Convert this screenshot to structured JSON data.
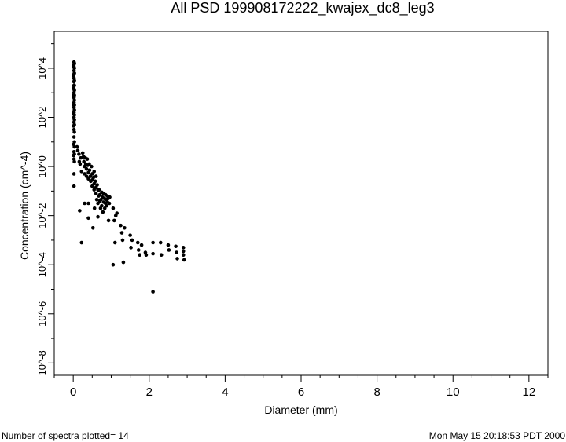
{
  "chart_data": {
    "type": "scatter",
    "title": "All PSD 199908172222_kwajex_dc8_leg3",
    "xlabel": "Diameter (mm)",
    "ylabel": "Concentration (cm^-4)",
    "xlim": [
      -0.5,
      12.5
    ],
    "ylim": [
      -8.5,
      5.5
    ],
    "yscale": "log",
    "x_ticks": [
      0,
      2,
      4,
      6,
      8,
      10,
      12
    ],
    "x_tick_labels": [
      "0",
      "2",
      "4",
      "6",
      "8",
      "10",
      "12"
    ],
    "y_ticks": [
      4,
      2,
      0,
      -2,
      -4,
      -6,
      -8
    ],
    "y_tick_labels": [
      "10^4",
      "10^2",
      "10^0",
      "10^-2",
      "10^-4",
      "10^-6",
      "10^-8"
    ],
    "grid": false,
    "legend": "none",
    "marker_color": "#000000",
    "points": [
      [
        0.02,
        4.25
      ],
      [
        0.02,
        4.15
      ],
      [
        0.02,
        4.05
      ],
      [
        0.02,
        3.9
      ],
      [
        0.02,
        3.75
      ],
      [
        0.02,
        3.6
      ],
      [
        0.02,
        3.45
      ],
      [
        0.02,
        3.3
      ],
      [
        0.02,
        3.15
      ],
      [
        0.02,
        3.0
      ],
      [
        0.02,
        2.8
      ],
      [
        0.02,
        2.6
      ],
      [
        0.02,
        2.4
      ],
      [
        0.02,
        2.2
      ],
      [
        0.02,
        2.0
      ],
      [
        0.02,
        1.8
      ],
      [
        0.02,
        1.5
      ],
      [
        0.02,
        1.2
      ],
      [
        0.02,
        0.6
      ],
      [
        0.02,
        0.3
      ],
      [
        0.02,
        -0.3
      ],
      [
        0.02,
        -0.8
      ],
      [
        0.03,
        4.2
      ],
      [
        0.03,
        4.0
      ],
      [
        0.03,
        3.8
      ],
      [
        0.03,
        3.5
      ],
      [
        0.03,
        3.3
      ],
      [
        0.03,
        3.1
      ],
      [
        0.03,
        2.9
      ],
      [
        0.03,
        2.7
      ],
      [
        0.03,
        2.5
      ],
      [
        0.03,
        2.3
      ],
      [
        0.03,
        2.1
      ],
      [
        0.03,
        1.9
      ],
      [
        0.03,
        1.7
      ],
      [
        0.03,
        1.4
      ],
      [
        0.03,
        1.0
      ],
      [
        0.03,
        0.8
      ],
      [
        0.03,
        0.5
      ],
      [
        0.03,
        0.2
      ],
      [
        0.01,
        4.1
      ],
      [
        0.01,
        3.7
      ],
      [
        0.01,
        3.2
      ],
      [
        0.01,
        2.9
      ],
      [
        0.01,
        2.5
      ],
      [
        0.01,
        2.15
      ],
      [
        0.01,
        1.65
      ],
      [
        0.01,
        0.9
      ],
      [
        0.01,
        0.45
      ],
      [
        0.1,
        0.8
      ],
      [
        0.12,
        0.65
      ],
      [
        0.15,
        0.5
      ],
      [
        0.16,
        0.2
      ],
      [
        0.18,
        0.1
      ],
      [
        0.2,
        0.35
      ],
      [
        0.22,
        -0.2
      ],
      [
        0.17,
        -1.8
      ],
      [
        0.22,
        -3.1
      ],
      [
        0.25,
        0.55
      ],
      [
        0.27,
        0.4
      ],
      [
        0.28,
        0.2
      ],
      [
        0.3,
        0.0
      ],
      [
        0.3,
        -0.3
      ],
      [
        0.3,
        -1.5
      ],
      [
        0.32,
        0.35
      ],
      [
        0.33,
        0.1
      ],
      [
        0.35,
        -0.1
      ],
      [
        0.35,
        -0.4
      ],
      [
        0.37,
        0.3
      ],
      [
        0.38,
        0.05
      ],
      [
        0.4,
        -0.25
      ],
      [
        0.4,
        -0.5
      ],
      [
        0.4,
        -1.5
      ],
      [
        0.4,
        -2.1
      ],
      [
        0.42,
        0.1
      ],
      [
        0.43,
        -0.15
      ],
      [
        0.45,
        -0.4
      ],
      [
        0.46,
        -0.6
      ],
      [
        0.48,
        0.0
      ],
      [
        0.5,
        -0.3
      ],
      [
        0.5,
        -0.55
      ],
      [
        0.5,
        -0.8
      ],
      [
        0.52,
        -2.5
      ],
      [
        0.53,
        -0.45
      ],
      [
        0.55,
        -0.2
      ],
      [
        0.55,
        -0.7
      ],
      [
        0.55,
        -0.95
      ],
      [
        0.56,
        -1.7
      ],
      [
        0.58,
        -0.6
      ],
      [
        0.6,
        -0.4
      ],
      [
        0.6,
        -0.85
      ],
      [
        0.6,
        -1.1
      ],
      [
        0.62,
        -1.35
      ],
      [
        0.63,
        -0.75
      ],
      [
        0.65,
        -0.95
      ],
      [
        0.65,
        -1.5
      ],
      [
        0.65,
        -2.05
      ],
      [
        0.67,
        -1.2
      ],
      [
        0.68,
        -0.95
      ],
      [
        0.7,
        -1.4
      ],
      [
        0.7,
        -1.15
      ],
      [
        0.72,
        -1.7
      ],
      [
        0.73,
        -1.35
      ],
      [
        0.75,
        -1.05
      ],
      [
        0.75,
        -1.6
      ],
      [
        0.77,
        -1.25
      ],
      [
        0.78,
        -1.85
      ],
      [
        0.8,
        -1.1
      ],
      [
        0.8,
        -1.45
      ],
      [
        0.82,
        -1.3
      ],
      [
        0.83,
        -1.7
      ],
      [
        0.85,
        -1.15
      ],
      [
        0.85,
        -1.5
      ],
      [
        0.87,
        -1.35
      ],
      [
        0.88,
        -1.6
      ],
      [
        0.9,
        -1.2
      ],
      [
        0.9,
        -1.45
      ],
      [
        0.92,
        -1.3
      ],
      [
        0.93,
        -2.2
      ],
      [
        0.95,
        -1.5
      ],
      [
        0.96,
        -1.25
      ],
      [
        1.05,
        -1.7
      ],
      [
        1.08,
        -2.2
      ],
      [
        1.1,
        -3.1
      ],
      [
        1.12,
        -2.0
      ],
      [
        1.15,
        -1.9
      ],
      [
        1.05,
        -4.0
      ],
      [
        1.25,
        -2.4
      ],
      [
        1.28,
        -2.7
      ],
      [
        1.3,
        -3.0
      ],
      [
        1.32,
        -3.9
      ],
      [
        1.35,
        -2.5
      ],
      [
        1.5,
        -2.8
      ],
      [
        1.52,
        -3.3
      ],
      [
        1.55,
        -3.0
      ],
      [
        1.7,
        -3.1
      ],
      [
        1.72,
        -3.4
      ],
      [
        1.75,
        -3.6
      ],
      [
        1.8,
        -3.2
      ],
      [
        1.9,
        -3.5
      ],
      [
        1.92,
        -3.6
      ],
      [
        2.1,
        -3.1
      ],
      [
        2.1,
        -3.55
      ],
      [
        2.1,
        -5.1
      ],
      [
        2.3,
        -3.1
      ],
      [
        2.32,
        -3.6
      ],
      [
        2.5,
        -3.2
      ],
      [
        2.52,
        -3.4
      ],
      [
        2.7,
        -3.25
      ],
      [
        2.72,
        -3.5
      ],
      [
        2.74,
        -3.75
      ],
      [
        2.9,
        -3.3
      ],
      [
        2.9,
        -3.45
      ],
      [
        2.9,
        -3.6
      ],
      [
        2.92,
        -3.8
      ]
    ]
  },
  "footer": {
    "spectra_count": "Number of spectra plotted= 14",
    "timestamp": "Mon May 15 20:18:53 PDT 2000"
  }
}
